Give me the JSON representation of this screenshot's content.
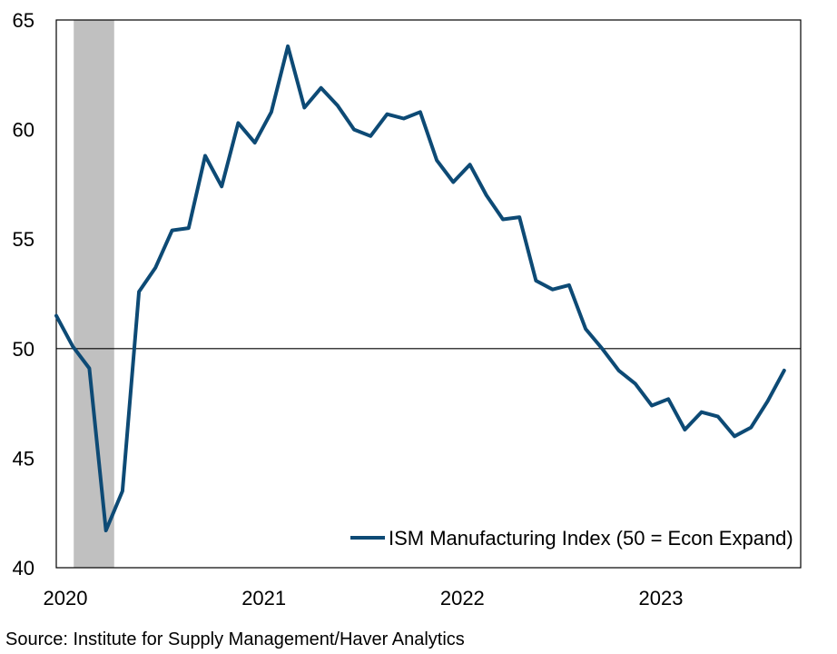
{
  "chart_data": {
    "type": "line",
    "title": "",
    "xlabel": "",
    "ylabel": "",
    "ylim": [
      40,
      65
    ],
    "yticks": [
      40,
      45,
      50,
      55,
      60,
      65
    ],
    "x_tick_labels": [
      "2020",
      "2021",
      "2022",
      "2023"
    ],
    "xlim": [
      "2020-01",
      "2023-10"
    ],
    "reference_line": 50,
    "recession_band": {
      "start": "2020-02",
      "end": "2020-04"
    },
    "series": [
      {
        "name": "ISM Manufacturing Index (50 = Econ Expand)",
        "color": "#0d4a75",
        "x": [
          "2020-01",
          "2020-02",
          "2020-03",
          "2020-04",
          "2020-05",
          "2020-06",
          "2020-07",
          "2020-08",
          "2020-09",
          "2020-10",
          "2020-11",
          "2020-12",
          "2021-01",
          "2021-02",
          "2021-03",
          "2021-04",
          "2021-05",
          "2021-06",
          "2021-07",
          "2021-08",
          "2021-09",
          "2021-10",
          "2021-11",
          "2021-12",
          "2022-01",
          "2022-02",
          "2022-03",
          "2022-04",
          "2022-05",
          "2022-06",
          "2022-07",
          "2022-08",
          "2022-09",
          "2022-10",
          "2022-11",
          "2022-12",
          "2023-01",
          "2023-02",
          "2023-03",
          "2023-04",
          "2023-05",
          "2023-06",
          "2023-07",
          "2023-08",
          "2023-09"
        ],
        "values": [
          51.5,
          50.1,
          49.1,
          41.7,
          43.5,
          52.6,
          53.7,
          55.4,
          55.5,
          58.8,
          57.4,
          60.3,
          59.4,
          60.8,
          63.8,
          61.0,
          61.9,
          61.1,
          60.0,
          59.7,
          60.7,
          60.5,
          60.8,
          58.6,
          57.6,
          58.4,
          57.0,
          55.9,
          56.0,
          53.1,
          52.7,
          52.9,
          50.9,
          50.0,
          49.0,
          48.4,
          47.4,
          47.7,
          46.3,
          47.1,
          46.9,
          46.0,
          46.4,
          47.6,
          49.0
        ]
      }
    ]
  },
  "legend": {
    "label": "ISM Manufacturing Index (50 = Econ Expand)",
    "placement": "bottom-right"
  },
  "source": "Source: Institute for Supply Management/Haver Analytics",
  "colors": {
    "line": "#0d4a75",
    "recession": "#c0c0c0",
    "frame": "#000000"
  }
}
